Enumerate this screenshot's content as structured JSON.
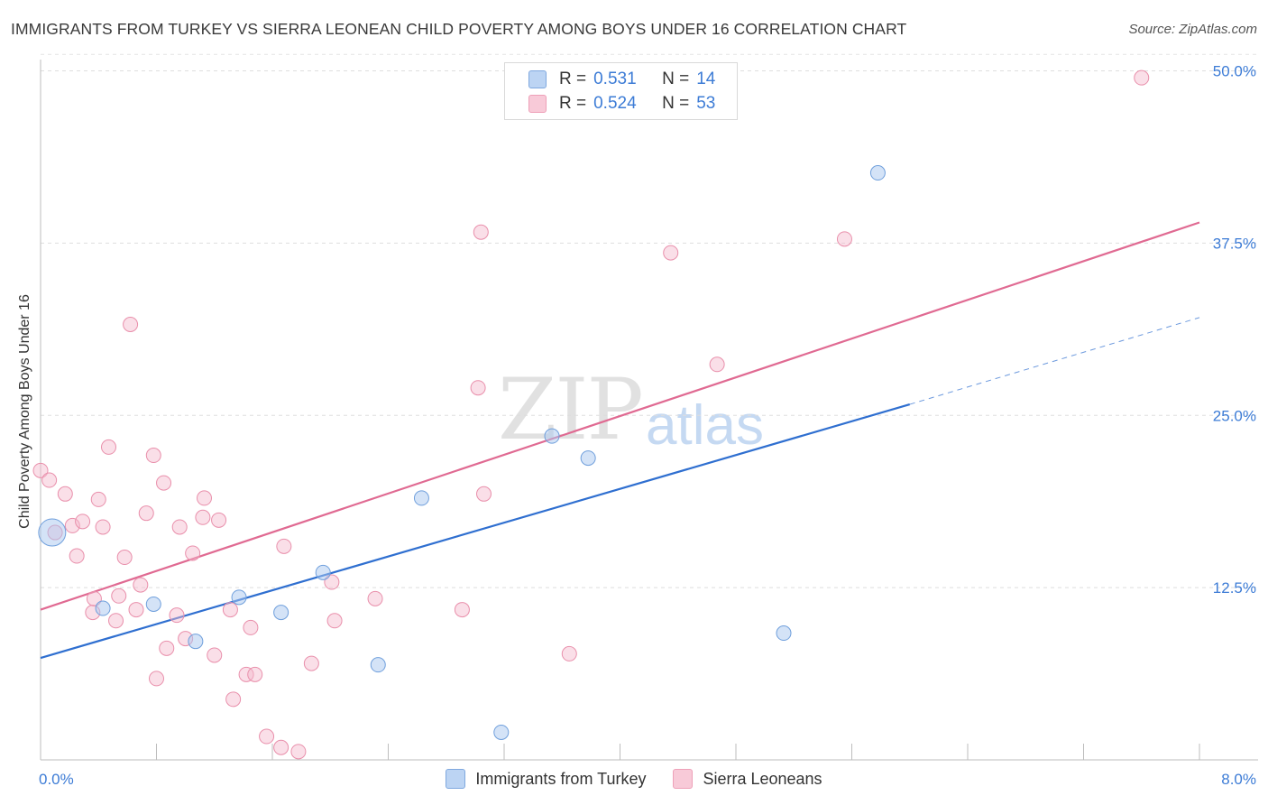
{
  "title": "IMMIGRANTS FROM TURKEY VS SIERRA LEONEAN CHILD POVERTY AMONG BOYS UNDER 16 CORRELATION CHART",
  "source": "Source: ZipAtlas.com",
  "watermark": {
    "zip": "ZIP",
    "atlas": "atlas"
  },
  "legend": {
    "series1": {
      "r_label": "R =",
      "r_value": "0.531",
      "n_label": "N =",
      "n_value": "14"
    },
    "series2": {
      "r_label": "R =",
      "r_value": "0.524",
      "n_label": "N =",
      "n_value": "53"
    }
  },
  "bottom_legend": {
    "series1": "Immigrants from Turkey",
    "series2": "Sierra Leoneans"
  },
  "colors": {
    "blue_fill": "#a9c8f0",
    "blue_stroke": "#6f9fdc",
    "blue_line": "#2f6fd0",
    "pink_fill": "#f5b9cc",
    "pink_stroke": "#e98fab",
    "pink_line": "#e06a92",
    "tick_text": "#3d7cd6"
  },
  "chart_data": {
    "type": "scatter",
    "title": "IMMIGRANTS FROM TURKEY VS SIERRA LEONEAN CHILD POVERTY AMONG BOYS UNDER 16 CORRELATION CHART",
    "xlabel": "",
    "ylabel": "Child Poverty Among Boys Under 16",
    "xlim": [
      0,
      8
    ],
    "ylim": [
      0,
      52
    ],
    "x_tick_labels": [
      "0.0%",
      "8.0%"
    ],
    "y_ticks": [
      12.5,
      25.0,
      37.5,
      50.0
    ],
    "y_tick_labels": [
      "12.5%",
      "25.0%",
      "37.5%",
      "50.0%"
    ],
    "grid": true,
    "legend_position": "top-center",
    "series": [
      {
        "name": "Immigrants from Turkey",
        "r": 0.531,
        "n": 14,
        "points": [
          [
            0.08,
            16.5,
            3
          ],
          [
            0.43,
            11.0,
            1
          ],
          [
            0.78,
            11.3,
            1
          ],
          [
            1.07,
            8.6,
            1
          ],
          [
            1.37,
            11.8,
            1
          ],
          [
            1.66,
            10.7,
            1
          ],
          [
            1.95,
            13.6,
            1
          ],
          [
            2.33,
            6.9,
            1
          ],
          [
            2.63,
            19.0,
            1
          ],
          [
            3.18,
            2.0,
            1
          ],
          [
            3.53,
            23.5,
            1
          ],
          [
            3.78,
            21.9,
            1
          ],
          [
            5.13,
            9.2,
            1
          ],
          [
            5.78,
            42.6,
            1
          ]
        ],
        "trend": {
          "x": [
            0,
            6.0
          ],
          "y": [
            7.4,
            25.8
          ]
        },
        "trend_extension": {
          "x": [
            6.0,
            8.0
          ],
          "y": [
            25.8,
            32.1
          ]
        }
      },
      {
        "name": "Sierra Leoneans",
        "r": 0.524,
        "n": 53,
        "points": [
          [
            0.0,
            21.0
          ],
          [
            0.06,
            20.3
          ],
          [
            0.1,
            16.5
          ],
          [
            0.17,
            19.3
          ],
          [
            0.22,
            17.0
          ],
          [
            0.25,
            14.8
          ],
          [
            0.29,
            17.3
          ],
          [
            0.36,
            10.7
          ],
          [
            0.37,
            11.7
          ],
          [
            0.4,
            18.9
          ],
          [
            0.43,
            16.9
          ],
          [
            0.47,
            22.7
          ],
          [
            0.52,
            10.1
          ],
          [
            0.54,
            11.9
          ],
          [
            0.58,
            14.7
          ],
          [
            0.62,
            31.6
          ],
          [
            0.66,
            10.9
          ],
          [
            0.69,
            12.7
          ],
          [
            0.73,
            17.9
          ],
          [
            0.78,
            22.1
          ],
          [
            0.8,
            5.9
          ],
          [
            0.85,
            20.1
          ],
          [
            0.87,
            8.1
          ],
          [
            0.94,
            10.5
          ],
          [
            0.96,
            16.9
          ],
          [
            1.0,
            8.8
          ],
          [
            1.05,
            15.0
          ],
          [
            1.12,
            17.6
          ],
          [
            1.13,
            19.0
          ],
          [
            1.2,
            7.6
          ],
          [
            1.23,
            17.4
          ],
          [
            1.31,
            10.9
          ],
          [
            1.33,
            4.4
          ],
          [
            1.42,
            6.2
          ],
          [
            1.45,
            9.6
          ],
          [
            1.48,
            6.2
          ],
          [
            1.56,
            1.7
          ],
          [
            1.66,
            0.9
          ],
          [
            1.68,
            15.5
          ],
          [
            1.78,
            0.6
          ],
          [
            1.87,
            7.0
          ],
          [
            2.01,
            12.9
          ],
          [
            2.03,
            10.1
          ],
          [
            2.31,
            11.7
          ],
          [
            2.91,
            10.9
          ],
          [
            3.02,
            27.0
          ],
          [
            3.04,
            38.3
          ],
          [
            3.06,
            19.3
          ],
          [
            3.65,
            7.7
          ],
          [
            4.35,
            36.8
          ],
          [
            4.67,
            28.7
          ],
          [
            5.55,
            37.8
          ],
          [
            7.6,
            49.5
          ]
        ],
        "trend": {
          "x": [
            0,
            8.0
          ],
          "y": [
            10.9,
            39.0
          ]
        }
      }
    ]
  }
}
